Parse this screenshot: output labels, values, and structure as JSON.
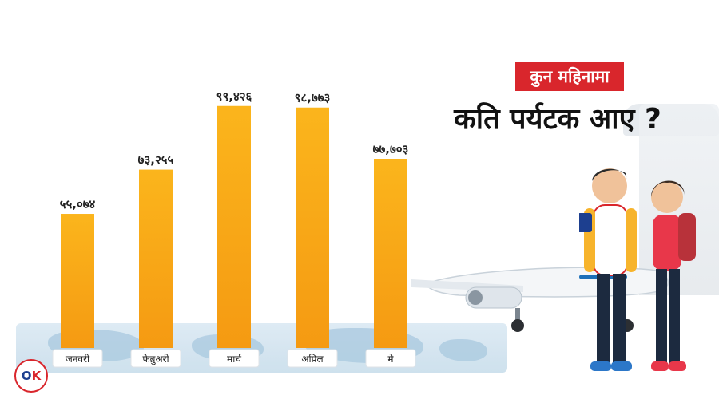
{
  "header": {
    "badge": "कुन महिनामा",
    "title": "कति पर्यटक आए ?"
  },
  "logo": {
    "text_o": "O",
    "text_k": "K"
  },
  "colors": {
    "bar_top": "#fbb51c",
    "bar_bottom": "#f59a12",
    "accent": "#d9262c",
    "label_box": "#ffffff",
    "value_text": "#222222"
  },
  "chart_data": {
    "type": "bar",
    "categories": [
      "जनवरी",
      "फेब्रुअरी",
      "मार्च",
      "अप्रिल",
      "मे"
    ],
    "values": [
      55074,
      73255,
      99426,
      98773,
      77703
    ],
    "value_labels": [
      "५५,०७४",
      "७३,२५५",
      "९९,४२६",
      "९८,७७३",
      "७७,७०३"
    ],
    "title": "",
    "xlabel": "",
    "ylabel": "",
    "ylim": [
      0,
      100000
    ],
    "grid": false
  }
}
